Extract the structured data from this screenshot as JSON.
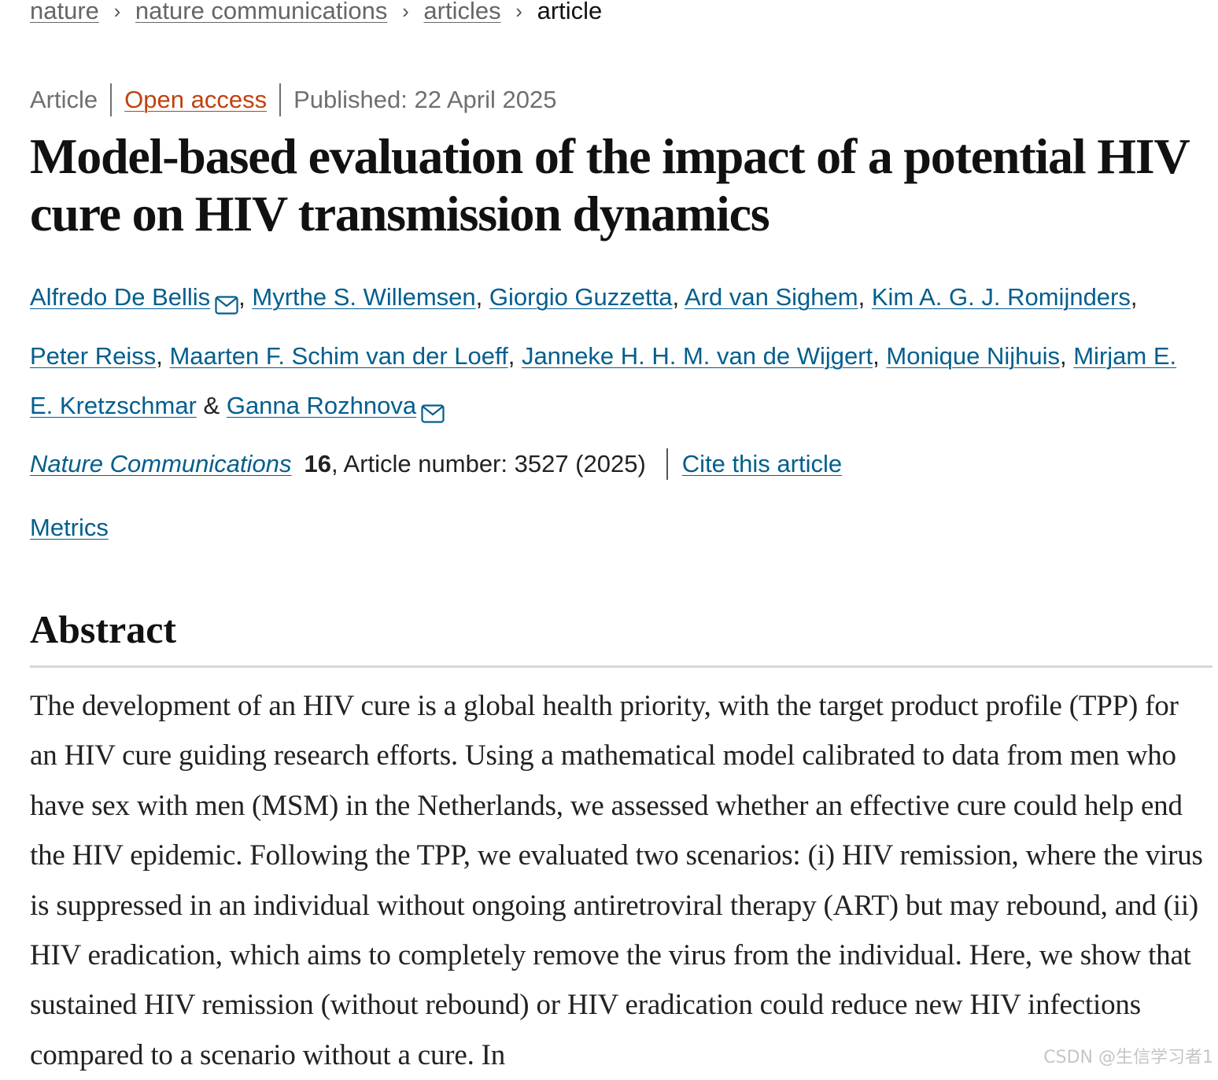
{
  "breadcrumb": {
    "items": [
      "nature",
      "nature communications",
      "articles"
    ],
    "current": "article"
  },
  "meta": {
    "type": "Article",
    "access": "Open access",
    "published": "Published: 22 April 2025"
  },
  "title": "Model-based evaluation of the impact of a potential HIV cure on HIV transmission dynamics",
  "authors": [
    "Alfredo De Bellis",
    "Myrthe S. Willemsen",
    "Giorgio Guzzetta",
    "Ard van Sighem",
    "Kim A. G. J. Romijnders",
    "Peter Reiss",
    "Maarten F. Schim van der Loeff",
    "Janneke H. H. M. van de Wijgert",
    "Monique Nijhuis",
    "Mirjam E. E. Kretzschmar",
    "Ganna Rozhnova"
  ],
  "author_separators": {
    "comma": ",",
    "ampersand": "&"
  },
  "citation": {
    "journal": "Nature Communications",
    "volume": "16",
    "article_number": ", Article number: 3527 (2025)",
    "cite_link": "Cite this article"
  },
  "metrics_link": "Metrics",
  "abstract": {
    "heading": "Abstract",
    "text": "The development of an HIV cure is a global health priority, with the target product profile (TPP) for an HIV cure guiding research efforts. Using a mathematical model calibrated to data from men who have sex with men (MSM) in the Netherlands, we assessed whether an effective cure could help end the HIV epidemic. Following the TPP, we evaluated two scenarios: (i) HIV remission, where the virus is suppressed in an individual without ongoing antiretroviral therapy (ART) but may rebound, and (ii) HIV eradication, which aims to completely remove the virus from the individual. Here, we show that sustained HIV remission (without rebound) or HIV eradication could reduce new HIV infections compared to a scenario without a cure. In"
  },
  "watermark": "CSDN @生信学习者1",
  "colors": {
    "link": "#025e8d",
    "open_access": "#c2410c",
    "muted": "#6f6f6f"
  },
  "icons": {
    "corresponding_author": "mail-icon",
    "breadcrumb_separator": "chevron-right-icon"
  }
}
